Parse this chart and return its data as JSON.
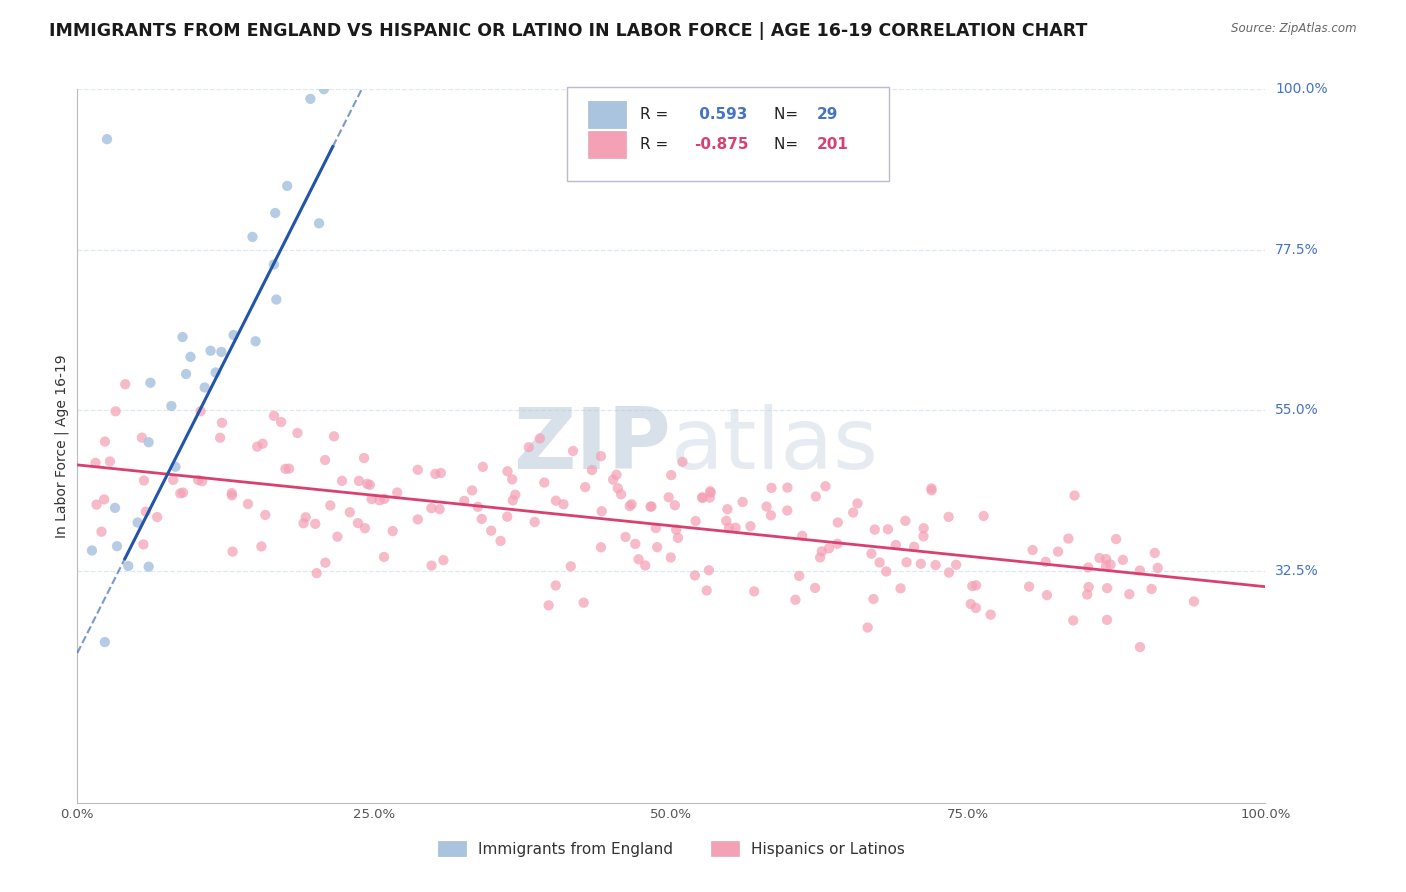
{
  "title": "IMMIGRANTS FROM ENGLAND VS HISPANIC OR LATINO IN LABOR FORCE | AGE 16-19 CORRELATION CHART",
  "source": "Source: ZipAtlas.com",
  "ylabel": "In Labor Force | Age 16-19",
  "xlim": [
    0.0,
    1.0
  ],
  "ylim": [
    0.0,
    1.0
  ],
  "xtick_vals": [
    0.0,
    0.25,
    0.5,
    0.75,
    1.0
  ],
  "xtick_labels": [
    "0.0%",
    "25.0%",
    "50.0%",
    "75.0%",
    "100.0%"
  ],
  "ytick_vals_right": [
    0.325,
    0.55,
    0.775,
    1.0
  ],
  "ytick_labels_right": [
    "32.5%",
    "55.0%",
    "77.5%",
    "100.0%"
  ],
  "blue_R": 0.593,
  "blue_N": 29,
  "pink_R": -0.875,
  "pink_N": 201,
  "blue_color": "#aac4e0",
  "blue_line_color": "#2255aa",
  "pink_color": "#f4a0b5",
  "pink_line_color": "#d84070",
  "watermark_color": "#ccd8ea",
  "legend_label_blue": "Immigrants from England",
  "legend_label_pink": "Hispanics or Latinos",
  "background_color": "#ffffff",
  "grid_color": "#dde8f0",
  "title_fontsize": 12.5,
  "axis_label_fontsize": 10,
  "tick_fontsize": 9.5,
  "right_label_color": "#4472c4",
  "legend_text_color": "#1a1a9a"
}
